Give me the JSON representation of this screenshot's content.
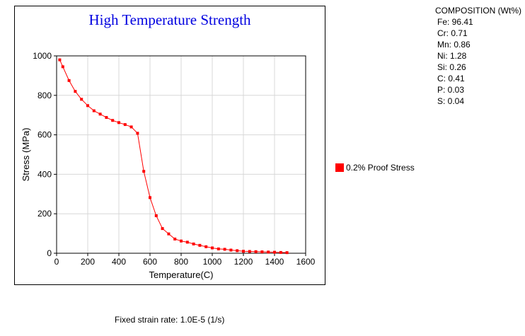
{
  "chart_data": {
    "type": "line",
    "title": "High Temperature Strength",
    "xlabel": "Temperature(C)",
    "ylabel": "Stress (MPa)",
    "xlim": [
      0,
      1600
    ],
    "ylim": [
      0,
      1000
    ],
    "x_ticks": [
      0,
      200,
      400,
      600,
      800,
      1000,
      1200,
      1400,
      1600
    ],
    "y_ticks": [
      0,
      200,
      400,
      600,
      800,
      1000
    ],
    "grid": true,
    "legend_position": "right",
    "series": [
      {
        "name": "0.2% Proof Stress",
        "color": "#ff0000",
        "marker": "square",
        "x": [
          20,
          40,
          80,
          120,
          160,
          200,
          240,
          280,
          320,
          360,
          400,
          440,
          480,
          520,
          560,
          600,
          640,
          680,
          720,
          760,
          800,
          840,
          880,
          920,
          960,
          1000,
          1040,
          1080,
          1120,
          1160,
          1200,
          1240,
          1280,
          1320,
          1360,
          1400,
          1440,
          1480
        ],
        "y": [
          980,
          945,
          875,
          820,
          780,
          748,
          722,
          705,
          688,
          673,
          662,
          652,
          640,
          608,
          415,
          282,
          190,
          125,
          98,
          72,
          62,
          56,
          47,
          40,
          33,
          27,
          22,
          20,
          16,
          13,
          10,
          9,
          8,
          7,
          6,
          5,
          4,
          3
        ]
      }
    ]
  },
  "composition": {
    "title": "COMPOSITION (Wt%)",
    "items": [
      "Fe: 96.41",
      "Cr: 0.71",
      "Mn: 0.86",
      "Ni: 1.28",
      "Si: 0.26",
      "C: 0.41",
      "P: 0.03",
      "S: 0.04"
    ]
  },
  "footer_note": "Fixed strain rate: 1.0E-5 (1/s)"
}
